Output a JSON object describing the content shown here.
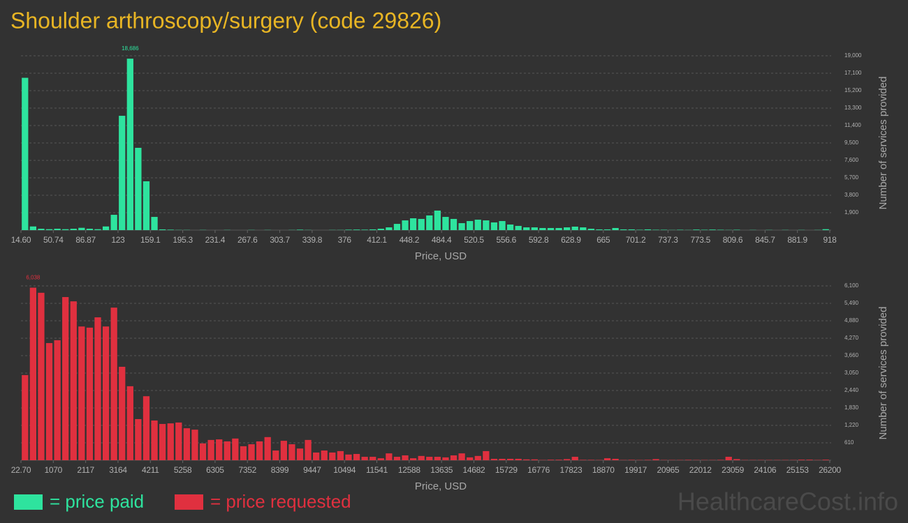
{
  "title": "Shoulder arthroscopy/surgery (code 29826)",
  "watermark": "HealthcareCost.info",
  "chart_data": [
    {
      "type": "histogram",
      "x_label": "Price, USD",
      "y_label": "Number of services provided",
      "grid": true,
      "bins": [
        14.6,
        23.63,
        32.67,
        41.7,
        50.74,
        59.77,
        68.8,
        77.84,
        86.87,
        95.91,
        104.94,
        113.97,
        123.01,
        132.04,
        141.08,
        150.11,
        159.14,
        168.18,
        177.21,
        186.25,
        195.28,
        204.31,
        213.35,
        222.38,
        231.42,
        240.45,
        249.48,
        258.52,
        267.55,
        276.59,
        285.62,
        294.65,
        303.69,
        312.72,
        321.76,
        330.79,
        339.82,
        348.86,
        357.89,
        366.93,
        375.96,
        384.99,
        394.03,
        403.06,
        412.1,
        421.13,
        430.16,
        439.2,
        448.23,
        457.27,
        466.3,
        475.33,
        484.37,
        493.4,
        502.44,
        511.47,
        520.5,
        529.54,
        538.57,
        547.61,
        556.64,
        565.67,
        574.71,
        583.74,
        592.78,
        601.81,
        610.84,
        619.88,
        628.91,
        637.95,
        646.98,
        656.01,
        665.05,
        674.08,
        683.12,
        692.15,
        701.18,
        710.22,
        719.25,
        728.29,
        737.32,
        746.35,
        755.39,
        764.42,
        773.46,
        782.49,
        791.52,
        800.56,
        809.59,
        818.63,
        827.66,
        836.69,
        845.73,
        854.76,
        863.8,
        872.83,
        881.86,
        890.9,
        899.93,
        908.97,
        918
      ],
      "series": [
        {
          "name": "= price paid",
          "color": "#2ee39e",
          "values": [
            16600,
            400,
            150,
            100,
            150,
            100,
            150,
            250,
            150,
            100,
            400,
            1670,
            12460,
            18686,
            8970,
            5320,
            1440,
            80,
            50,
            20,
            20,
            0,
            20,
            0,
            0,
            20,
            0,
            0,
            20,
            0,
            20,
            0,
            0,
            20,
            50,
            20,
            0,
            0,
            20,
            20,
            50,
            60,
            50,
            80,
            150,
            300,
            680,
            1060,
            1290,
            1220,
            1600,
            2130,
            1440,
            1220,
            760,
            990,
            1140,
            1060,
            840,
            990,
            610,
            460,
            300,
            300,
            230,
            230,
            230,
            300,
            380,
            300,
            150,
            80,
            80,
            230,
            80,
            80,
            40,
            80,
            40,
            40,
            20,
            40,
            20,
            60,
            40,
            60,
            40,
            20,
            40,
            0,
            20,
            0,
            20,
            0,
            20,
            0,
            20,
            0,
            20,
            100
          ],
          "value_labels": [
            null,
            null,
            null,
            null,
            null,
            null,
            null,
            null,
            null,
            null,
            null,
            null,
            null,
            "18,686",
            null,
            null,
            null,
            null,
            null,
            null,
            null,
            null,
            null,
            null,
            null,
            null,
            null,
            null,
            null,
            null,
            null,
            null,
            null,
            null,
            null,
            null,
            null,
            null,
            null,
            null,
            null,
            null,
            null,
            null,
            null,
            null,
            null,
            null,
            null,
            null,
            null,
            null,
            null,
            null,
            null,
            null,
            null,
            null,
            null,
            null,
            null,
            null,
            null,
            null,
            null,
            null,
            null,
            null,
            null,
            null,
            null,
            null,
            null,
            null,
            null,
            null,
            null,
            null,
            null,
            null,
            null,
            null,
            null,
            null,
            null,
            null,
            null,
            null,
            null,
            null,
            null,
            null,
            null,
            null,
            null,
            null,
            null,
            null,
            null,
            null
          ]
        }
      ],
      "xlim": [
        14.6,
        918
      ],
      "xticks": [
        {
          "value": 14.6,
          "label": "14.60"
        },
        {
          "value": 50.74,
          "label": "50.74"
        },
        {
          "value": 86.87,
          "label": "86.87"
        },
        {
          "value": 123.01,
          "label": "123"
        },
        {
          "value": 159.14,
          "label": "159.1"
        },
        {
          "value": 195.28,
          "label": "195.3"
        },
        {
          "value": 231.42,
          "label": "231.4"
        },
        {
          "value": 267.55,
          "label": "267.6"
        },
        {
          "value": 303.69,
          "label": "303.7"
        },
        {
          "value": 339.82,
          "label": "339.8"
        },
        {
          "value": 375.96,
          "label": "376"
        },
        {
          "value": 412.1,
          "label": "412.1"
        },
        {
          "value": 448.23,
          "label": "448.2"
        },
        {
          "value": 484.37,
          "label": "484.4"
        },
        {
          "value": 520.5,
          "label": "520.5"
        },
        {
          "value": 556.64,
          "label": "556.6"
        },
        {
          "value": 592.78,
          "label": "592.8"
        },
        {
          "value": 628.91,
          "label": "628.9"
        },
        {
          "value": 665.05,
          "label": "665"
        },
        {
          "value": 701.18,
          "label": "701.2"
        },
        {
          "value": 737.32,
          "label": "737.3"
        },
        {
          "value": 773.46,
          "label": "773.5"
        },
        {
          "value": 809.59,
          "label": "809.6"
        },
        {
          "value": 845.73,
          "label": "845.7"
        },
        {
          "value": 881.86,
          "label": "881.9"
        },
        {
          "value": 918,
          "label": "918"
        }
      ],
      "ylim": [
        0,
        19000
      ],
      "yticks": [
        {
          "value": 1900,
          "label": "1,900"
        },
        {
          "value": 3800,
          "label": "3,800"
        },
        {
          "value": 5700,
          "label": "5,700"
        },
        {
          "value": 7600,
          "label": "7,600"
        },
        {
          "value": 9500,
          "label": "9,500"
        },
        {
          "value": 11400,
          "label": "11,400"
        },
        {
          "value": 13300,
          "label": "13,300"
        },
        {
          "value": 15200,
          "label": "15,200"
        },
        {
          "value": 17100,
          "label": "17,100"
        },
        {
          "value": 19000,
          "label": "19,000"
        }
      ]
    },
    {
      "type": "histogram",
      "x_label": "Price, USD",
      "y_label": "Number of services provided",
      "grid": true,
      "bins": [
        22.7,
        284.47,
        546.25,
        808.02,
        1069.79,
        1331.57,
        1593.34,
        1855.11,
        2116.88,
        2378.66,
        2640.43,
        2902.2,
        3163.98,
        3425.75,
        3687.52,
        3949.3,
        4211.07,
        4472.84,
        4734.61,
        4996.39,
        5258.16,
        5519.93,
        5781.71,
        6043.48,
        6305.25,
        6567.03,
        6828.8,
        7090.57,
        7352.34,
        7614.12,
        7875.89,
        8137.66,
        8399.44,
        8661.21,
        8922.98,
        9184.76,
        9446.53,
        9708.3,
        9970.07,
        10231.85,
        10493.62,
        10755.39,
        11017.17,
        11278.94,
        11540.71,
        11802.49,
        12064.26,
        12326.03,
        12587.8,
        12849.58,
        13111.35,
        13373.12,
        13634.9,
        13896.67,
        14158.44,
        14420.22,
        14681.99,
        14943.76,
        15205.53,
        15467.31,
        15729.08,
        15990.85,
        16252.63,
        16514.4,
        16776.17,
        17037.95,
        17299.72,
        17561.49,
        17823.26,
        18085.04,
        18346.81,
        18608.58,
        18870.36,
        19132.13,
        19393.9,
        19655.68,
        19917.45,
        20179.22,
        20440.99,
        20702.77,
        20964.54,
        21226.31,
        21488.09,
        21749.86,
        22011.63,
        22273.41,
        22535.18,
        22796.95,
        23058.72,
        23320.5,
        23582.27,
        23844.04,
        24105.82,
        24367.59,
        24629.36,
        24891.14,
        25152.91,
        25414.68,
        25676.45,
        25938.23,
        26200
      ],
      "series": [
        {
          "name": "= price requested",
          "color": "#e0303f",
          "values": [
            2980,
            6038,
            5860,
            4100,
            4200,
            5710,
            5560,
            4680,
            4640,
            5000,
            4680,
            5340,
            3270,
            2590,
            1440,
            2240,
            1390,
            1270,
            1290,
            1320,
            1120,
            1070,
            590,
            710,
            730,
            660,
            760,
            490,
            560,
            660,
            810,
            340,
            680,
            560,
            410,
            710,
            270,
            340,
            270,
            320,
            200,
            220,
            120,
            120,
            70,
            240,
            120,
            170,
            70,
            150,
            120,
            120,
            100,
            170,
            240,
            100,
            150,
            320,
            50,
            50,
            50,
            50,
            30,
            30,
            10,
            20,
            20,
            40,
            120,
            15,
            15,
            10,
            70,
            50,
            10,
            15,
            10,
            15,
            40,
            10,
            10,
            10,
            15,
            10,
            10,
            10,
            15,
            120,
            40,
            10,
            10,
            10,
            10,
            10,
            10,
            10,
            20,
            20,
            10,
            20
          ],
          "value_labels": [
            null,
            "6,038",
            null,
            null,
            null,
            null,
            null,
            null,
            null,
            null,
            null,
            null,
            null,
            null,
            null,
            null,
            null,
            null,
            null,
            null,
            null,
            null,
            null,
            null,
            null,
            null,
            null,
            null,
            null,
            null,
            null,
            null,
            null,
            null,
            null,
            null,
            null,
            null,
            null,
            null,
            null,
            null,
            null,
            null,
            null,
            null,
            null,
            null,
            null,
            null,
            null,
            null,
            null,
            null,
            null,
            null,
            null,
            null,
            null,
            null,
            null,
            null,
            null,
            null,
            null,
            null,
            null,
            null,
            null,
            null,
            null,
            null,
            null,
            null,
            null,
            null,
            null,
            null,
            null,
            null,
            null,
            null,
            null,
            null,
            null,
            null,
            null,
            null,
            null,
            null,
            null,
            null,
            null,
            null,
            null,
            null,
            null,
            null,
            null,
            null
          ]
        }
      ],
      "xlim": [
        22.7,
        26200
      ],
      "xticks": [
        {
          "value": 22.7,
          "label": "22.70"
        },
        {
          "value": 1069.79,
          "label": "1070"
        },
        {
          "value": 2116.88,
          "label": "2117"
        },
        {
          "value": 3163.98,
          "label": "3164"
        },
        {
          "value": 4211.07,
          "label": "4211"
        },
        {
          "value": 5258.16,
          "label": "5258"
        },
        {
          "value": 6305.25,
          "label": "6305"
        },
        {
          "value": 7352.34,
          "label": "7352"
        },
        {
          "value": 8399.44,
          "label": "8399"
        },
        {
          "value": 9446.53,
          "label": "9447"
        },
        {
          "value": 10493.62,
          "label": "10494"
        },
        {
          "value": 11540.71,
          "label": "11541"
        },
        {
          "value": 12587.8,
          "label": "12588"
        },
        {
          "value": 13634.9,
          "label": "13635"
        },
        {
          "value": 14681.99,
          "label": "14682"
        },
        {
          "value": 15729.08,
          "label": "15729"
        },
        {
          "value": 16776.17,
          "label": "16776"
        },
        {
          "value": 17823.26,
          "label": "17823"
        },
        {
          "value": 18870.36,
          "label": "18870"
        },
        {
          "value": 19917.45,
          "label": "19917"
        },
        {
          "value": 20964.54,
          "label": "20965"
        },
        {
          "value": 22011.63,
          "label": "22012"
        },
        {
          "value": 23058.72,
          "label": "23059"
        },
        {
          "value": 24105.82,
          "label": "24106"
        },
        {
          "value": 25152.91,
          "label": "25153"
        },
        {
          "value": 26200,
          "label": "26200"
        }
      ],
      "ylim": [
        0,
        6100
      ],
      "yticks": [
        610,
        {
          "value": 1220,
          "label": "1,220"
        },
        {
          "value": 1830,
          "label": "1,830"
        },
        {
          "value": 2440,
          "label": "2,440"
        },
        {
          "value": 3050,
          "label": "3,050"
        },
        {
          "value": 3660,
          "label": "3,660"
        },
        {
          "value": 4270,
          "label": "4,270"
        },
        {
          "value": 4880,
          "label": "4,880"
        },
        {
          "value": 5490,
          "label": "5,490"
        },
        {
          "value": 6100,
          "label": "6,100"
        }
      ]
    }
  ]
}
